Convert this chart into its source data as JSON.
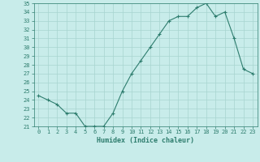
{
  "x": [
    0,
    1,
    2,
    3,
    4,
    5,
    6,
    7,
    8,
    9,
    10,
    11,
    12,
    13,
    14,
    15,
    16,
    17,
    18,
    19,
    20,
    21,
    22,
    23
  ],
  "y": [
    24.5,
    24.0,
    23.5,
    22.5,
    22.5,
    21.0,
    21.0,
    21.0,
    22.5,
    25.0,
    27.0,
    28.5,
    30.0,
    31.5,
    33.0,
    33.5,
    33.5,
    34.5,
    35.0,
    33.5,
    34.0,
    31.0,
    27.5,
    27.0
  ],
  "xlabel": "Humidex (Indice chaleur)",
  "ylim": [
    21,
    35
  ],
  "xlim": [
    -0.5,
    23.5
  ],
  "yticks": [
    21,
    22,
    23,
    24,
    25,
    26,
    27,
    28,
    29,
    30,
    31,
    32,
    33,
    34,
    35
  ],
  "xticks": [
    0,
    1,
    2,
    3,
    4,
    5,
    6,
    7,
    8,
    9,
    10,
    11,
    12,
    13,
    14,
    15,
    16,
    17,
    18,
    19,
    20,
    21,
    22,
    23
  ],
  "line_color": "#2e7d6e",
  "marker": "+",
  "bg_color": "#c8ecea",
  "grid_color": "#a8d4d0",
  "tick_label_color": "#2e7d6e",
  "font_family": "monospace",
  "tick_fontsize": 5.0,
  "xlabel_fontsize": 6.0
}
